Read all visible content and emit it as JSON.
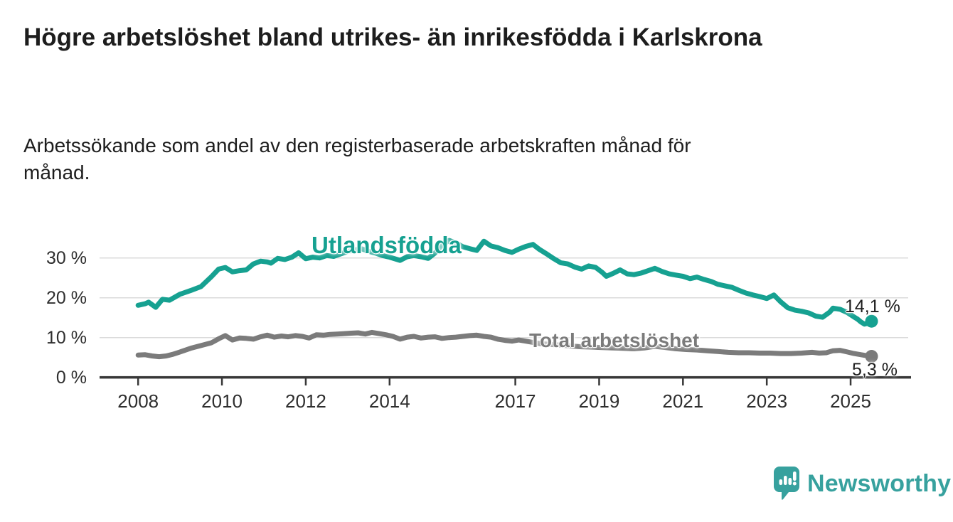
{
  "page": {
    "title": "Högre arbetslöshet bland utrikes- än inrikesfödda i Karlskrona",
    "subtitle": "Arbetssökande som andel av den registerbaserade arbetskraften månad för månad.",
    "background_color": "#ffffff",
    "text_color": "#1d1d1d"
  },
  "branding": {
    "logo_text": "Newsworthy",
    "logo_color": "#37a19e",
    "logo_icon": "newsworthy-speech-bubble-bar-chart-icon"
  },
  "chart_data": {
    "type": "line",
    "unit": "%",
    "x_axis": {
      "tick_labels": [
        "2008",
        "2010",
        "2012",
        "2014",
        "2017",
        "2019",
        "2021",
        "2023",
        "2025"
      ],
      "tick_years": [
        2008,
        2010,
        2012,
        2014,
        2017,
        2019,
        2021,
        2023,
        2025
      ],
      "range": [
        2007.08,
        2026.44
      ]
    },
    "y_axis": {
      "tick_labels": [
        "0 %",
        "10 %",
        "20 %",
        "30 %"
      ],
      "tick_values": [
        0,
        10,
        20,
        30
      ],
      "range": [
        0,
        35.8
      ],
      "grid": true,
      "grid_color": "#dbdbdb",
      "axis_color": "#383838"
    },
    "series": [
      {
        "name": "Utlandsfödda",
        "color": "#16a191",
        "end_label": "14,1 %",
        "end_value": 14.1,
        "points": [
          [
            2008.0,
            18.1
          ],
          [
            2008.17,
            18.5
          ],
          [
            2008.25,
            18.9
          ],
          [
            2008.42,
            17.6
          ],
          [
            2008.58,
            19.6
          ],
          [
            2008.75,
            19.4
          ],
          [
            2009.0,
            20.9
          ],
          [
            2009.25,
            21.8
          ],
          [
            2009.5,
            22.8
          ],
          [
            2009.75,
            25.3
          ],
          [
            2009.92,
            27.2
          ],
          [
            2010.08,
            27.6
          ],
          [
            2010.25,
            26.5
          ],
          [
            2010.42,
            26.8
          ],
          [
            2010.58,
            27.0
          ],
          [
            2010.75,
            28.5
          ],
          [
            2010.92,
            29.2
          ],
          [
            2011.08,
            29.0
          ],
          [
            2011.17,
            28.7
          ],
          [
            2011.33,
            29.9
          ],
          [
            2011.5,
            29.6
          ],
          [
            2011.67,
            30.2
          ],
          [
            2011.83,
            31.3
          ],
          [
            2012.0,
            29.8
          ],
          [
            2012.17,
            30.2
          ],
          [
            2012.33,
            30.0
          ],
          [
            2012.5,
            30.6
          ],
          [
            2012.67,
            30.4
          ],
          [
            2012.83,
            31.0
          ],
          [
            2013.0,
            31.6
          ],
          [
            2013.17,
            32.0
          ],
          [
            2013.33,
            32.3
          ],
          [
            2013.5,
            31.7
          ],
          [
            2013.67,
            31.2
          ],
          [
            2013.83,
            30.6
          ],
          [
            2014.0,
            30.2
          ],
          [
            2014.25,
            29.4
          ],
          [
            2014.42,
            30.3
          ],
          [
            2014.58,
            30.6
          ],
          [
            2014.75,
            30.3
          ],
          [
            2014.92,
            29.9
          ],
          [
            2015.08,
            31.2
          ],
          [
            2015.25,
            33.2
          ],
          [
            2015.42,
            34.4
          ],
          [
            2015.58,
            33.8
          ],
          [
            2015.75,
            32.8
          ],
          [
            2015.92,
            32.3
          ],
          [
            2016.08,
            31.9
          ],
          [
            2016.25,
            34.2
          ],
          [
            2016.42,
            33.0
          ],
          [
            2016.58,
            32.6
          ],
          [
            2016.75,
            31.9
          ],
          [
            2016.92,
            31.4
          ],
          [
            2017.08,
            32.2
          ],
          [
            2017.25,
            32.9
          ],
          [
            2017.42,
            33.4
          ],
          [
            2017.58,
            32.1
          ],
          [
            2017.75,
            31.0
          ],
          [
            2017.92,
            29.8
          ],
          [
            2018.08,
            28.8
          ],
          [
            2018.25,
            28.5
          ],
          [
            2018.42,
            27.7
          ],
          [
            2018.58,
            27.2
          ],
          [
            2018.75,
            28.0
          ],
          [
            2018.92,
            27.6
          ],
          [
            2019.08,
            26.3
          ],
          [
            2019.17,
            25.4
          ],
          [
            2019.33,
            26.1
          ],
          [
            2019.5,
            27.0
          ],
          [
            2019.67,
            26.0
          ],
          [
            2019.83,
            25.8
          ],
          [
            2020.0,
            26.2
          ],
          [
            2020.17,
            26.8
          ],
          [
            2020.33,
            27.4
          ],
          [
            2020.5,
            26.6
          ],
          [
            2020.67,
            26.0
          ],
          [
            2020.83,
            25.7
          ],
          [
            2021.0,
            25.4
          ],
          [
            2021.17,
            24.8
          ],
          [
            2021.33,
            25.2
          ],
          [
            2021.5,
            24.6
          ],
          [
            2021.67,
            24.1
          ],
          [
            2021.83,
            23.4
          ],
          [
            2022.0,
            23.0
          ],
          [
            2022.17,
            22.6
          ],
          [
            2022.33,
            21.9
          ],
          [
            2022.5,
            21.2
          ],
          [
            2022.67,
            20.7
          ],
          [
            2022.83,
            20.3
          ],
          [
            2023.0,
            19.8
          ],
          [
            2023.17,
            20.7
          ],
          [
            2023.33,
            19.0
          ],
          [
            2023.5,
            17.5
          ],
          [
            2023.67,
            16.9
          ],
          [
            2023.83,
            16.6
          ],
          [
            2024.0,
            16.2
          ],
          [
            2024.17,
            15.4
          ],
          [
            2024.33,
            15.1
          ],
          [
            2024.5,
            16.4
          ],
          [
            2024.58,
            17.4
          ],
          [
            2024.75,
            17.1
          ],
          [
            2024.92,
            16.3
          ],
          [
            2025.08,
            15.2
          ],
          [
            2025.17,
            14.6
          ],
          [
            2025.25,
            13.9
          ],
          [
            2025.33,
            13.4
          ],
          [
            2025.42,
            13.6
          ],
          [
            2025.5,
            14.1
          ]
        ]
      },
      {
        "name": "Total arbetslöshet",
        "color": "#7b7b7b",
        "end_label": "5,3 %",
        "end_value": 5.3,
        "points": [
          [
            2008.0,
            5.6
          ],
          [
            2008.17,
            5.7
          ],
          [
            2008.33,
            5.4
          ],
          [
            2008.5,
            5.2
          ],
          [
            2008.67,
            5.4
          ],
          [
            2008.83,
            5.8
          ],
          [
            2009.0,
            6.4
          ],
          [
            2009.25,
            7.3
          ],
          [
            2009.5,
            8.0
          ],
          [
            2009.75,
            8.7
          ],
          [
            2009.92,
            9.7
          ],
          [
            2010.08,
            10.5
          ],
          [
            2010.25,
            9.4
          ],
          [
            2010.42,
            9.9
          ],
          [
            2010.58,
            9.8
          ],
          [
            2010.75,
            9.6
          ],
          [
            2010.92,
            10.2
          ],
          [
            2011.08,
            10.6
          ],
          [
            2011.25,
            10.1
          ],
          [
            2011.42,
            10.4
          ],
          [
            2011.58,
            10.2
          ],
          [
            2011.75,
            10.5
          ],
          [
            2011.92,
            10.3
          ],
          [
            2012.08,
            9.9
          ],
          [
            2012.25,
            10.7
          ],
          [
            2012.42,
            10.6
          ],
          [
            2012.58,
            10.8
          ],
          [
            2012.75,
            10.9
          ],
          [
            2012.92,
            11.0
          ],
          [
            2013.08,
            11.1
          ],
          [
            2013.25,
            11.2
          ],
          [
            2013.42,
            10.9
          ],
          [
            2013.58,
            11.3
          ],
          [
            2013.75,
            11.0
          ],
          [
            2013.92,
            10.7
          ],
          [
            2014.08,
            10.3
          ],
          [
            2014.25,
            9.6
          ],
          [
            2014.42,
            10.1
          ],
          [
            2014.58,
            10.3
          ],
          [
            2014.75,
            9.9
          ],
          [
            2014.92,
            10.1
          ],
          [
            2015.08,
            10.2
          ],
          [
            2015.25,
            9.8
          ],
          [
            2015.42,
            10.0
          ],
          [
            2015.58,
            10.1
          ],
          [
            2015.75,
            10.3
          ],
          [
            2015.92,
            10.5
          ],
          [
            2016.08,
            10.6
          ],
          [
            2016.25,
            10.3
          ],
          [
            2016.42,
            10.1
          ],
          [
            2016.58,
            9.6
          ],
          [
            2016.75,
            9.3
          ],
          [
            2016.92,
            9.1
          ],
          [
            2017.08,
            9.4
          ],
          [
            2017.25,
            9.1
          ],
          [
            2017.42,
            8.8
          ],
          [
            2017.58,
            8.5
          ],
          [
            2017.83,
            8.3
          ],
          [
            2018.08,
            8.1
          ],
          [
            2018.33,
            7.9
          ],
          [
            2018.58,
            7.7
          ],
          [
            2018.83,
            7.6
          ],
          [
            2019.08,
            7.5
          ],
          [
            2019.33,
            7.4
          ],
          [
            2019.58,
            7.3
          ],
          [
            2019.83,
            7.2
          ],
          [
            2020.08,
            7.4
          ],
          [
            2020.33,
            7.8
          ],
          [
            2020.58,
            7.5
          ],
          [
            2020.83,
            7.2
          ],
          [
            2021.08,
            7.0
          ],
          [
            2021.33,
            6.9
          ],
          [
            2021.58,
            6.7
          ],
          [
            2021.83,
            6.5
          ],
          [
            2022.08,
            6.3
          ],
          [
            2022.33,
            6.2
          ],
          [
            2022.58,
            6.2
          ],
          [
            2022.83,
            6.1
          ],
          [
            2023.08,
            6.1
          ],
          [
            2023.33,
            6.0
          ],
          [
            2023.58,
            6.0
          ],
          [
            2023.83,
            6.1
          ],
          [
            2024.08,
            6.3
          ],
          [
            2024.25,
            6.1
          ],
          [
            2024.42,
            6.2
          ],
          [
            2024.58,
            6.7
          ],
          [
            2024.75,
            6.8
          ],
          [
            2024.92,
            6.4
          ],
          [
            2025.08,
            6.0
          ],
          [
            2025.25,
            5.7
          ],
          [
            2025.42,
            5.4
          ],
          [
            2025.5,
            5.3
          ]
        ]
      }
    ]
  }
}
